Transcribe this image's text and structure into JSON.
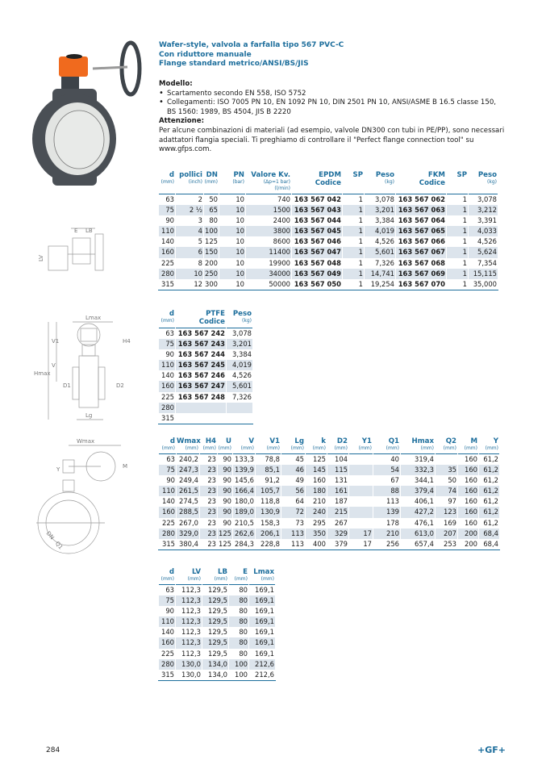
{
  "title": [
    "Wafer-style, valvola a farfalla tipo 567 PVC-C",
    "Con riduttore manuale",
    "Flange standard metrico/ANSI/BS/JIS"
  ],
  "intro": {
    "model_heading": "Modello:",
    "bullets": [
      "Scartamento secondo EN 558, ISO 5752",
      "Collegamenti: ISO 7005 PN 10, EN 1092 PN 10, DIN 2501 PN 10, ANSI/ASME B 16.5 classe 150, BS 1560: 1989, BS 4504, JIS B 2220"
    ],
    "attention_heading": "Attenzione:",
    "attention_text": "Per alcune combinazioni di materiali (ad esempio, valvole DN300 con tubi in PE/PP), sono necessari adattatori flangia speciali. Ti preghiamo di controllare il \"Perfect flange connection tool\" su www.gfps.com."
  },
  "tables": [
    {
      "name": "codes-table",
      "bold": [
        5,
        8
      ],
      "headers": [
        [
          "d",
          "(mm)"
        ],
        [
          "pollici",
          "(inch)"
        ],
        [
          "DN",
          "(mm)"
        ],
        [
          "PN",
          "(bar)"
        ],
        [
          "Valore Kv.",
          "(Δp=1 bar)",
          "(l/min)"
        ],
        [
          "EPDM",
          "Codice"
        ],
        [
          "SP",
          ""
        ],
        [
          "Peso",
          "(kg)"
        ],
        [
          "FKM",
          "Codice"
        ],
        [
          "SP",
          ""
        ],
        [
          "Peso",
          "(kg)"
        ]
      ],
      "rows": [
        [
          "63",
          "2",
          "50",
          "10",
          "740",
          "163 567 042",
          "1",
          "3,078",
          "163 567 062",
          "1",
          "3,078"
        ],
        [
          "75",
          "2 ½",
          "65",
          "10",
          "1500",
          "163 567 043",
          "1",
          "3,201",
          "163 567 063",
          "1",
          "3,212"
        ],
        [
          "90",
          "3",
          "80",
          "10",
          "2400",
          "163 567 044",
          "1",
          "3,384",
          "163 567 064",
          "1",
          "3,391"
        ],
        [
          "110",
          "4",
          "100",
          "10",
          "3800",
          "163 567 045",
          "1",
          "4,019",
          "163 567 065",
          "1",
          "4,033"
        ],
        [
          "140",
          "5",
          "125",
          "10",
          "8600",
          "163 567 046",
          "1",
          "4,526",
          "163 567 066",
          "1",
          "4,526"
        ],
        [
          "160",
          "6",
          "150",
          "10",
          "11400",
          "163 567 047",
          "1",
          "5,601",
          "163 567 067",
          "1",
          "5,624"
        ],
        [
          "225",
          "8",
          "200",
          "10",
          "19900",
          "163 567 048",
          "1",
          "7,326",
          "163 567 068",
          "1",
          "7,354"
        ],
        [
          "280",
          "10",
          "250",
          "10",
          "34000",
          "163 567 049",
          "1",
          "14,741",
          "163 567 069",
          "1",
          "15,115"
        ],
        [
          "315",
          "12",
          "300",
          "10",
          "50000",
          "163 567 050",
          "1",
          "19,254",
          "163 567 070",
          "1",
          "35,000"
        ]
      ]
    },
    {
      "name": "ptfe-table",
      "bold": [
        1
      ],
      "headers": [
        [
          "d",
          "(mm)"
        ],
        [
          "PTFE",
          "Codice"
        ],
        [
          "Peso",
          "(kg)"
        ]
      ],
      "rows": [
        [
          "63",
          "163 567 242",
          "3,078"
        ],
        [
          "75",
          "163 567 243",
          "3,201"
        ],
        [
          "90",
          "163 567 244",
          "3,384"
        ],
        [
          "110",
          "163 567 245",
          "4,019"
        ],
        [
          "140",
          "163 567 246",
          "4,526"
        ],
        [
          "160",
          "163 567 247",
          "5,601"
        ],
        [
          "225",
          "163 567 248",
          "7,326"
        ],
        [
          "280",
          "",
          ""
        ],
        [
          "315",
          "",
          ""
        ]
      ]
    },
    {
      "name": "dimensions-table",
      "bold": [],
      "headers": [
        [
          "d",
          "(mm)"
        ],
        [
          "Wmax",
          "(mm)"
        ],
        [
          "H4",
          "(mm)"
        ],
        [
          "U",
          "(mm)"
        ],
        [
          "V",
          "(mm)"
        ],
        [
          "V1",
          "(mm)"
        ],
        [
          "Lg",
          "(mm)"
        ],
        [
          "k",
          "(mm)"
        ],
        [
          "D2",
          "(mm)"
        ],
        [
          "Y1",
          "(mm)"
        ],
        [
          "Q1",
          "(mm)"
        ],
        [
          "Hmax",
          "(mm)"
        ],
        [
          "Q2",
          "(mm)"
        ],
        [
          "M",
          "(mm)"
        ],
        [
          "Y",
          "(mm)"
        ]
      ],
      "rows": [
        [
          "63",
          "240,2",
          "23",
          "90",
          "133,3",
          "78,8",
          "45",
          "125",
          "104",
          "",
          "40",
          "319,4",
          "",
          "160",
          "61,2"
        ],
        [
          "75",
          "247,3",
          "23",
          "90",
          "139,9",
          "85,1",
          "46",
          "145",
          "115",
          "",
          "54",
          "332,3",
          "35",
          "160",
          "61,2"
        ],
        [
          "90",
          "249,4",
          "23",
          "90",
          "145,6",
          "91,2",
          "49",
          "160",
          "131",
          "",
          "67",
          "344,1",
          "50",
          "160",
          "61,2"
        ],
        [
          "110",
          "261,5",
          "23",
          "90",
          "166,4",
          "105,7",
          "56",
          "180",
          "161",
          "",
          "88",
          "379,4",
          "74",
          "160",
          "61,2"
        ],
        [
          "140",
          "274,5",
          "23",
          "90",
          "180,0",
          "118,8",
          "64",
          "210",
          "187",
          "",
          "113",
          "406,1",
          "97",
          "160",
          "61,2"
        ],
        [
          "160",
          "288,5",
          "23",
          "90",
          "189,0",
          "130,9",
          "72",
          "240",
          "215",
          "",
          "139",
          "427,2",
          "123",
          "160",
          "61,2"
        ],
        [
          "225",
          "267,0",
          "23",
          "90",
          "210,5",
          "158,3",
          "73",
          "295",
          "267",
          "",
          "178",
          "476,1",
          "169",
          "160",
          "61,2"
        ],
        [
          "280",
          "329,0",
          "23",
          "125",
          "262,6",
          "206,1",
          "113",
          "350",
          "329",
          "17",
          "210",
          "613,0",
          "207",
          "200",
          "68,4"
        ],
        [
          "315",
          "380,4",
          "23",
          "125",
          "284,3",
          "228,8",
          "113",
          "400",
          "379",
          "17",
          "256",
          "657,4",
          "253",
          "200",
          "68,4"
        ]
      ]
    },
    {
      "name": "gear-dimensions-table",
      "bold": [],
      "headers": [
        [
          "d",
          "(mm)"
        ],
        [
          "LV",
          "(mm)"
        ],
        [
          "LB",
          "(mm)"
        ],
        [
          "E",
          "(mm)"
        ],
        [
          "Lmax",
          "(mm)"
        ]
      ],
      "rows": [
        [
          "63",
          "112,3",
          "129,5",
          "80",
          "169,1"
        ],
        [
          "75",
          "112,3",
          "129,5",
          "80",
          "169,1"
        ],
        [
          "90",
          "112,3",
          "129,5",
          "80",
          "169,1"
        ],
        [
          "110",
          "112,3",
          "129,5",
          "80",
          "169,1"
        ],
        [
          "140",
          "112,3",
          "129,5",
          "80",
          "169,1"
        ],
        [
          "160",
          "112,3",
          "129,5",
          "80",
          "169,1"
        ],
        [
          "225",
          "112,3",
          "129,5",
          "80",
          "169,1"
        ],
        [
          "280",
          "130,0",
          "134,0",
          "100",
          "212,6"
        ],
        [
          "315",
          "130,0",
          "134,0",
          "100",
          "212,6"
        ]
      ]
    }
  ],
  "drawings": {
    "top_view": [
      "E",
      "LB",
      "LV"
    ],
    "side_view": [
      "Lmax",
      "H4",
      "V1",
      "Hmax",
      "V",
      "D1",
      "D2",
      "Lg"
    ],
    "front_view": [
      "Wmax",
      "Y",
      "M",
      "DN",
      "Q1"
    ]
  },
  "footer": {
    "page_number": "284",
    "logo": "+GF+"
  },
  "colors": {
    "accent": "#1d6e9c",
    "row_shade": "#dce4ec",
    "actuator": "#f06a1e",
    "valve_body": "#4a4f55"
  }
}
